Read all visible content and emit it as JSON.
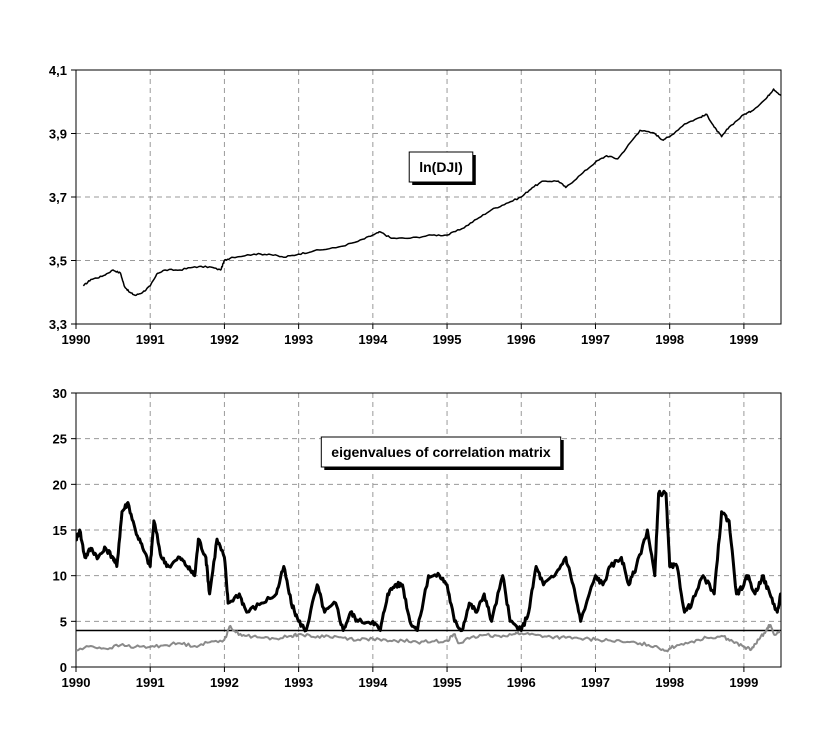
{
  "chart_data": [
    {
      "type": "line",
      "annotation": "ln(DJI)",
      "xlim": [
        1990,
        1999.5
      ],
      "ylim": [
        3.3,
        4.1
      ],
      "x_ticks": [
        1990,
        1991,
        1992,
        1993,
        1994,
        1995,
        1996,
        1997,
        1998,
        1999
      ],
      "x_tick_labels": [
        "1990",
        "1991",
        "1992",
        "1993",
        "1994",
        "1995",
        "1996",
        "1997",
        "1998",
        "1999"
      ],
      "y_ticks": [
        3.3,
        3.5,
        3.7,
        3.9,
        4.1
      ],
      "y_tick_labels": [
        "3,3",
        "3,5",
        "3,7",
        "3,9",
        "4,1"
      ],
      "grid": true,
      "series": [
        {
          "color": "#000000",
          "points": [
            [
              1990.1,
              3.42
            ],
            [
              1990.2,
              3.44
            ],
            [
              1990.35,
              3.45
            ],
            [
              1990.5,
              3.47
            ],
            [
              1990.6,
              3.46
            ],
            [
              1990.65,
              3.42
            ],
            [
              1990.72,
              3.4
            ],
            [
              1990.8,
              3.39
            ],
            [
              1990.9,
              3.4
            ],
            [
              1991.0,
              3.42
            ],
            [
              1991.1,
              3.46
            ],
            [
              1991.2,
              3.47
            ],
            [
              1991.4,
              3.47
            ],
            [
              1991.6,
              3.48
            ],
            [
              1991.8,
              3.48
            ],
            [
              1991.95,
              3.47
            ],
            [
              1992.0,
              3.5
            ],
            [
              1992.1,
              3.51
            ],
            [
              1992.4,
              3.52
            ],
            [
              1992.6,
              3.52
            ],
            [
              1992.8,
              3.51
            ],
            [
              1993.0,
              3.52
            ],
            [
              1993.2,
              3.53
            ],
            [
              1993.5,
              3.54
            ],
            [
              1993.8,
              3.56
            ],
            [
              1994.0,
              3.58
            ],
            [
              1994.1,
              3.59
            ],
            [
              1994.25,
              3.57
            ],
            [
              1994.5,
              3.57
            ],
            [
              1994.8,
              3.58
            ],
            [
              1995.0,
              3.58
            ],
            [
              1995.2,
              3.6
            ],
            [
              1995.4,
              3.63
            ],
            [
              1995.6,
              3.66
            ],
            [
              1995.8,
              3.68
            ],
            [
              1996.0,
              3.7
            ],
            [
              1996.15,
              3.73
            ],
            [
              1996.3,
              3.75
            ],
            [
              1996.5,
              3.75
            ],
            [
              1996.6,
              3.73
            ],
            [
              1996.8,
              3.77
            ],
            [
              1997.0,
              3.81
            ],
            [
              1997.15,
              3.83
            ],
            [
              1997.3,
              3.82
            ],
            [
              1997.5,
              3.88
            ],
            [
              1997.6,
              3.91
            ],
            [
              1997.8,
              3.9
            ],
            [
              1997.9,
              3.88
            ],
            [
              1998.0,
              3.89
            ],
            [
              1998.2,
              3.93
            ],
            [
              1998.4,
              3.95
            ],
            [
              1998.5,
              3.96
            ],
            [
              1998.6,
              3.92
            ],
            [
              1998.7,
              3.89
            ],
            [
              1998.8,
              3.92
            ],
            [
              1999.0,
              3.96
            ],
            [
              1999.1,
              3.97
            ],
            [
              1999.3,
              4.01
            ],
            [
              1999.4,
              4.04
            ],
            [
              1999.5,
              4.02
            ]
          ]
        }
      ]
    },
    {
      "type": "line",
      "annotation": "eigenvalues of correlation matrix",
      "xlim": [
        1990,
        1999.5
      ],
      "ylim": [
        0,
        30
      ],
      "x_ticks": [
        1990,
        1991,
        1992,
        1993,
        1994,
        1995,
        1996,
        1997,
        1998,
        1999
      ],
      "x_tick_labels": [
        "1990",
        "1991",
        "1992",
        "1993",
        "1994",
        "1995",
        "1996",
        "1997",
        "1998",
        "1999"
      ],
      "y_ticks": [
        0,
        5,
        10,
        15,
        20,
        25,
        30
      ],
      "y_tick_labels": [
        "0",
        "5",
        "10",
        "15",
        "20",
        "25",
        "30"
      ],
      "grid": true,
      "reference_line": {
        "y": 4.0,
        "color": "#000000"
      },
      "series": [
        {
          "color": "#000000",
          "width": 3,
          "points": [
            [
              1990.0,
              14
            ],
            [
              1990.05,
              15
            ],
            [
              1990.12,
              12
            ],
            [
              1990.2,
              13
            ],
            [
              1990.3,
              12
            ],
            [
              1990.4,
              13
            ],
            [
              1990.5,
              12
            ],
            [
              1990.55,
              11
            ],
            [
              1990.62,
              17
            ],
            [
              1990.7,
              18
            ],
            [
              1990.8,
              15
            ],
            [
              1990.9,
              13
            ],
            [
              1991.0,
              11
            ],
            [
              1991.05,
              16
            ],
            [
              1991.15,
              12
            ],
            [
              1991.25,
              11
            ],
            [
              1991.4,
              12
            ],
            [
              1991.5,
              11
            ],
            [
              1991.6,
              10
            ],
            [
              1991.65,
              14
            ],
            [
              1991.75,
              12
            ],
            [
              1991.8,
              8
            ],
            [
              1991.9,
              14
            ],
            [
              1992.0,
              12
            ],
            [
              1992.05,
              7
            ],
            [
              1992.2,
              8
            ],
            [
              1992.3,
              6
            ],
            [
              1992.5,
              7
            ],
            [
              1992.7,
              8
            ],
            [
              1992.8,
              11
            ],
            [
              1992.9,
              7
            ],
            [
              1993.0,
              5
            ],
            [
              1993.1,
              4
            ],
            [
              1993.25,
              9
            ],
            [
              1993.35,
              6
            ],
            [
              1993.5,
              7
            ],
            [
              1993.6,
              4
            ],
            [
              1993.7,
              6
            ],
            [
              1993.8,
              5
            ],
            [
              1994.0,
              5
            ],
            [
              1994.1,
              4
            ],
            [
              1994.2,
              8
            ],
            [
              1994.3,
              9
            ],
            [
              1994.4,
              9
            ],
            [
              1994.5,
              5
            ],
            [
              1994.6,
              4
            ],
            [
              1994.75,
              10
            ],
            [
              1994.9,
              10
            ],
            [
              1995.0,
              9
            ],
            [
              1995.1,
              5
            ],
            [
              1995.2,
              4
            ],
            [
              1995.3,
              7
            ],
            [
              1995.4,
              6
            ],
            [
              1995.5,
              8
            ],
            [
              1995.6,
              5
            ],
            [
              1995.75,
              10
            ],
            [
              1995.85,
              5
            ],
            [
              1996.0,
              4
            ],
            [
              1996.1,
              6
            ],
            [
              1996.2,
              11
            ],
            [
              1996.3,
              9
            ],
            [
              1996.45,
              10
            ],
            [
              1996.6,
              12
            ],
            [
              1996.7,
              9
            ],
            [
              1996.8,
              5
            ],
            [
              1997.0,
              10
            ],
            [
              1997.1,
              9
            ],
            [
              1997.2,
              11
            ],
            [
              1997.35,
              12
            ],
            [
              1997.45,
              9
            ],
            [
              1997.55,
              11
            ],
            [
              1997.7,
              15
            ],
            [
              1997.8,
              10
            ],
            [
              1997.85,
              19
            ],
            [
              1997.95,
              19
            ],
            [
              1998.0,
              11
            ],
            [
              1998.1,
              11
            ],
            [
              1998.2,
              6
            ],
            [
              1998.3,
              7
            ],
            [
              1998.45,
              10
            ],
            [
              1998.6,
              8
            ],
            [
              1998.7,
              17
            ],
            [
              1998.8,
              16
            ],
            [
              1998.9,
              8
            ],
            [
              1999.0,
              9
            ],
            [
              1999.05,
              10
            ],
            [
              1999.15,
              8
            ],
            [
              1999.25,
              10
            ],
            [
              1999.35,
              8
            ],
            [
              1999.45,
              6
            ],
            [
              1999.5,
              8
            ]
          ]
        },
        {
          "color": "#8a8a8a",
          "width": 2,
          "points": [
            [
              1990.0,
              1.8
            ],
            [
              1990.2,
              2.3
            ],
            [
              1990.4,
              2.0
            ],
            [
              1990.6,
              2.4
            ],
            [
              1990.8,
              2.2
            ],
            [
              1991.0,
              2.2
            ],
            [
              1991.2,
              2.4
            ],
            [
              1991.4,
              2.6
            ],
            [
              1991.6,
              2.3
            ],
            [
              1991.8,
              2.7
            ],
            [
              1992.0,
              3.0
            ],
            [
              1992.08,
              4.5
            ],
            [
              1992.15,
              3.8
            ],
            [
              1992.3,
              3.4
            ],
            [
              1992.5,
              3.2
            ],
            [
              1992.7,
              3.1
            ],
            [
              1992.9,
              3.4
            ],
            [
              1993.0,
              3.6
            ],
            [
              1993.2,
              3.3
            ],
            [
              1993.4,
              3.4
            ],
            [
              1993.6,
              3.2
            ],
            [
              1993.8,
              3.0
            ],
            [
              1994.0,
              3.1
            ],
            [
              1994.2,
              2.8
            ],
            [
              1994.4,
              2.9
            ],
            [
              1994.6,
              2.7
            ],
            [
              1994.8,
              2.8
            ],
            [
              1995.0,
              2.9
            ],
            [
              1995.1,
              3.6
            ],
            [
              1995.15,
              2.6
            ],
            [
              1995.3,
              3.1
            ],
            [
              1995.5,
              3.5
            ],
            [
              1995.7,
              3.4
            ],
            [
              1995.9,
              3.6
            ],
            [
              1996.0,
              3.7
            ],
            [
              1996.2,
              3.5
            ],
            [
              1996.4,
              3.3
            ],
            [
              1996.6,
              3.2
            ],
            [
              1996.8,
              3.1
            ],
            [
              1997.0,
              3.0
            ],
            [
              1997.2,
              2.9
            ],
            [
              1997.4,
              2.7
            ],
            [
              1997.6,
              2.6
            ],
            [
              1997.8,
              2.3
            ],
            [
              1997.95,
              1.8
            ],
            [
              1998.1,
              2.4
            ],
            [
              1998.3,
              2.8
            ],
            [
              1998.5,
              3.2
            ],
            [
              1998.7,
              3.4
            ],
            [
              1998.85,
              2.8
            ],
            [
              1999.0,
              2.2
            ],
            [
              1999.1,
              1.9
            ],
            [
              1999.2,
              3.0
            ],
            [
              1999.3,
              4.0
            ],
            [
              1999.35,
              4.6
            ],
            [
              1999.42,
              3.5
            ],
            [
              1999.5,
              3.8
            ]
          ]
        }
      ]
    }
  ]
}
